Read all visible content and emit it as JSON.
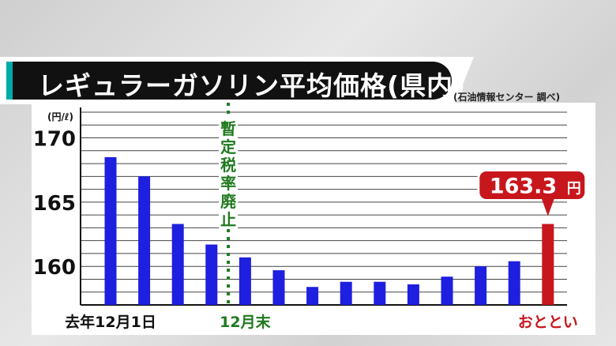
{
  "header": {
    "title": "レギュラーガソリン平均価格(県内)",
    "source": "(石油情報センター 調べ)"
  },
  "chart_data": {
    "type": "bar",
    "ylabel": "(円/ℓ)",
    "ylim": [
      157,
      172
    ],
    "yticks": [
      160,
      165,
      170
    ],
    "categories": [
      "去年12月1日",
      "",
      "",
      "",
      "12月末",
      "",
      "",
      "",
      "",
      "",
      "",
      "",
      "",
      "おととい"
    ],
    "values": [
      168.5,
      167.0,
      163.3,
      161.7,
      160.7,
      159.7,
      158.4,
      158.8,
      158.8,
      158.6,
      159.2,
      160.0,
      160.4,
      163.3
    ],
    "bar_colors": [
      "#1f1fe0",
      "#1f1fe0",
      "#1f1fe0",
      "#1f1fe0",
      "#1f1fe0",
      "#1f1fe0",
      "#1f1fe0",
      "#1f1fe0",
      "#1f1fe0",
      "#1f1fe0",
      "#1f1fe0",
      "#1f1fe0",
      "#1f1fe0",
      "#c8161d"
    ],
    "label_colors": [
      "#111111",
      "#111111",
      "#111111",
      "#111111",
      "#1f7a1f",
      "#111111",
      "#111111",
      "#111111",
      "#111111",
      "#111111",
      "#111111",
      "#111111",
      "#111111",
      "#c8161d"
    ],
    "annotation": {
      "text": "暫定税率廃止",
      "color": "#1f7a1f",
      "between": [
        3,
        4
      ]
    },
    "callout": {
      "value": "163.3",
      "unit": "円",
      "bar_index": 13,
      "color": "#c8161d"
    },
    "grid": true
  }
}
